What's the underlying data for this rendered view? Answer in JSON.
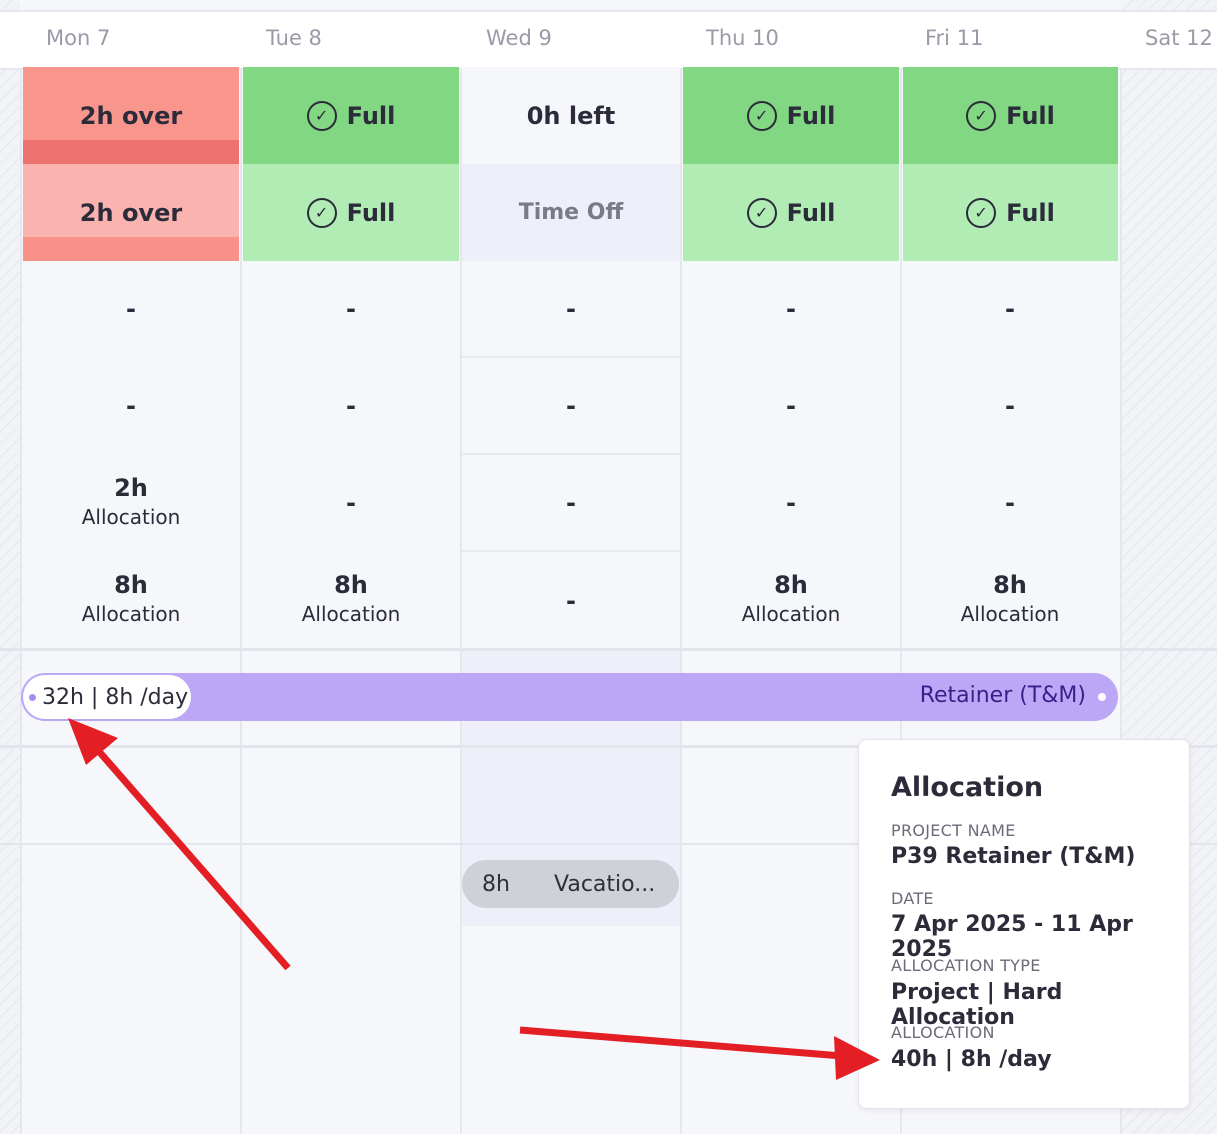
{
  "days": [
    {
      "label": "Mon 7"
    },
    {
      "label": "Tue 8"
    },
    {
      "label": "Wed 9"
    },
    {
      "label": "Thu 10"
    },
    {
      "label": "Fri 11"
    },
    {
      "label": "Sat 12"
    }
  ],
  "row1": [
    "2h over",
    "Full",
    "0h left",
    "Full",
    "Full"
  ],
  "row2": [
    "2h over",
    "Full",
    "Time Off",
    "Full",
    "Full"
  ],
  "dash": "-",
  "alloc": {
    "hours_2": "2h",
    "hours_8": "8h",
    "label": "Allocation"
  },
  "bar": {
    "pill_text": "32h | 8h /day",
    "project_label": "Retainer (T&M)"
  },
  "vacation": {
    "hours": "8h",
    "label": "Vacatio..."
  },
  "tooltip": {
    "title": "Allocation",
    "project_name_key": "PROJECT NAME",
    "project_name": "P39 Retainer (T&M)",
    "date_key": "DATE",
    "date": "7 Apr 2025 - 11 Apr 2025",
    "type_key": "ALLOCATION TYPE",
    "type": "Project | Hard Allocation",
    "alloc_key": "ALLOCATION",
    "alloc": "40h | 8h /day"
  },
  "colors": {
    "over_dark": "#f8958c",
    "over_light": "#fbb3b0",
    "full_dark": "#82d782",
    "full_light": "#b1ecb5",
    "bar": "#bca6f6",
    "arrow": "#e31e24"
  },
  "icons": [
    "check-circle-icon",
    "arrow-icon"
  ]
}
